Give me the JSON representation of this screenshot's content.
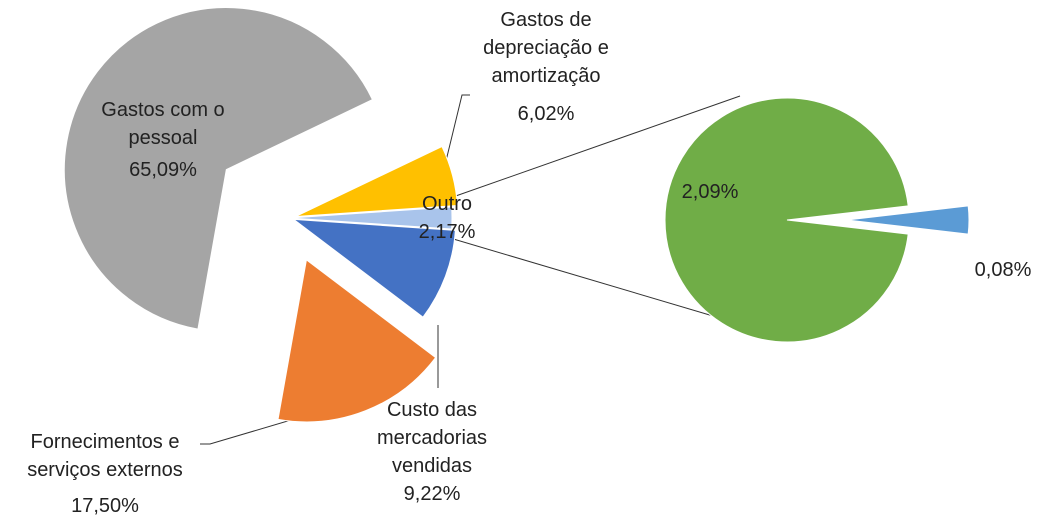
{
  "chart_data": [
    {
      "type": "pie",
      "categories": [
        "Outro",
        "Custo das mercadorias vendidas",
        "Fornecimentos e serviços externos",
        "Gastos com o pessoal",
        "Gastos de depreciação e amortização"
      ],
      "values": [
        2.17,
        9.22,
        17.5,
        65.09,
        6.02
      ],
      "value_labels": [
        "2,17%",
        "9,22%",
        "17,50%",
        "65,09%",
        "6,02%"
      ],
      "colors": [
        "#a9c4eb",
        "#4472c4",
        "#ed7d31",
        "#a5a5a5",
        "#ffc000"
      ]
    },
    {
      "type": "pie",
      "categories": [
        null,
        null
      ],
      "values": [
        0.08,
        2.09
      ],
      "value_labels": [
        "0,08%",
        "2,09%"
      ],
      "colors": [
        "#5b9bd5",
        "#70ad47"
      ]
    }
  ]
}
